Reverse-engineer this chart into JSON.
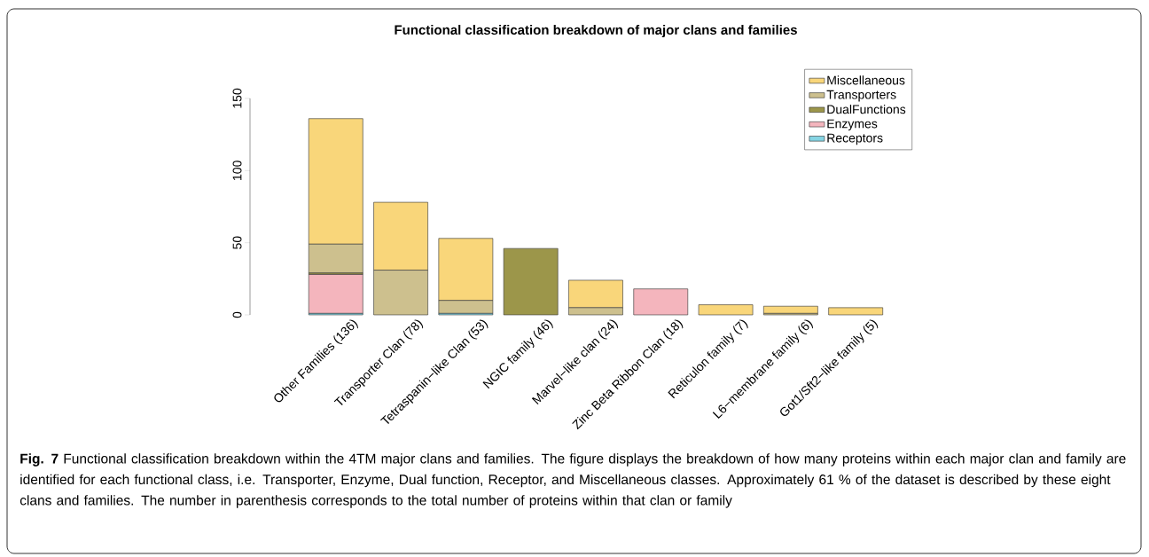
{
  "chart_data": {
    "type": "bar",
    "title": "Functional classification breakdown of major clans and families",
    "categories": [
      "Other Families (136)",
      "Transporter Clan (78)",
      "Tetraspanin−like Clan (53)",
      "NGIC family (46)",
      "Marvel−like clan (24)",
      "Zinc Beta Ribbon Clan (18)",
      "Reticulon family (7)",
      "L6−membrane family (6)",
      "Got1/Sft2−like family (5)"
    ],
    "stacked": true,
    "series": [
      {
        "name": "Receptors",
        "color": "#85d4e3",
        "values": [
          1,
          0,
          1,
          0,
          0,
          0,
          0,
          0,
          0
        ]
      },
      {
        "name": "Enzymes",
        "color": "#f4b5bd",
        "values": [
          27,
          0,
          0,
          0,
          0,
          18,
          0,
          0,
          0
        ]
      },
      {
        "name": "DualFunctions",
        "color": "#9c964a",
        "values": [
          1,
          0,
          0,
          46,
          0,
          0,
          0,
          0,
          0
        ]
      },
      {
        "name": "Transporters",
        "color": "#cdc08e",
        "values": [
          20,
          31,
          9,
          0,
          5,
          0,
          0,
          1,
          0
        ]
      },
      {
        "name": "Miscellaneous",
        "color": "#f9d67a",
        "values": [
          87,
          47,
          43,
          0,
          19,
          0,
          7,
          5,
          5
        ]
      }
    ],
    "ylim": [
      0,
      150
    ],
    "yticks": [
      0,
      50,
      100,
      150
    ],
    "grid": false,
    "legend": "top right",
    "annotations": [
      "**Fig. 7** Functional classification breakdown within the 4TM major clans and families. The figure displays the breakdown of how many proteins within each major clan and family are identified for each functional class, i.e. Transporter, Enzyme, Dual function, Receptor, and Miscellaneous classes. Approximately 61 % of the dataset is described by these eight clans and families. The number in parenthesis corresponds to the total number of proteins within that clan or family"
    ]
  }
}
